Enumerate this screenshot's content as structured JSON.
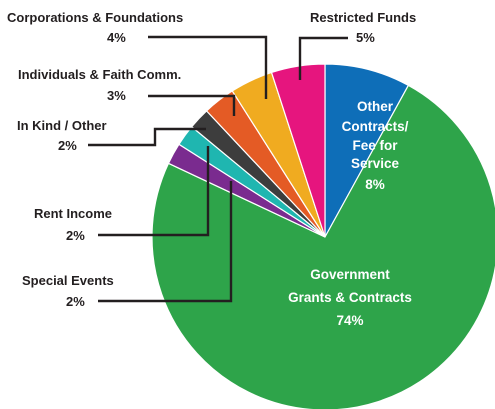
{
  "chart_data": {
    "type": "pie",
    "start_angle_deg": 0,
    "direction": "clockwise",
    "series": [
      {
        "name": "Slices",
        "values": [
          {
            "label": "Other Contracts/ Fee for Service",
            "value": 8,
            "color": "#0e6eb8",
            "pct": "8%"
          },
          {
            "label": "Government Grants & Contracts",
            "value": 74,
            "color": "#2ea44a",
            "pct": "74%"
          },
          {
            "label": "Special Events",
            "value": 2,
            "color": "#7a2b8f",
            "pct": "2%"
          },
          {
            "label": "Rent Income",
            "value": 2,
            "color": "#1fb6b0",
            "pct": "2%"
          },
          {
            "label": "In Kind / Other",
            "value": 2,
            "color": "#3d3d3d",
            "pct": "2%"
          },
          {
            "label": "Individuals & Faith Comm.",
            "value": 3,
            "color": "#e45b25",
            "pct": "3%"
          },
          {
            "label": "Corporations & Foundations",
            "value": 4,
            "color": "#f0ab20",
            "pct": "4%"
          },
          {
            "label": "Restricted Funds",
            "value": 5,
            "color": "#e6157e",
            "pct": "5%"
          }
        ]
      }
    ],
    "inside_labels": {
      "other": [
        "Other",
        "Contracts/",
        "Fee for",
        "Service",
        "8%"
      ],
      "government": [
        "Government",
        "Grants & Contracts",
        "74%"
      ]
    },
    "outside_labels": {
      "corporations": [
        "Corporations & Foundations",
        "4%"
      ],
      "restricted": [
        "Restricted Funds",
        "5%"
      ],
      "individuals": [
        "Individuals & Faith Comm.",
        "3%"
      ],
      "inkind": [
        "In Kind / Other",
        "2%"
      ],
      "rent": [
        "Rent Income",
        "2%"
      ],
      "special": [
        "Special Events",
        "2%"
      ]
    }
  }
}
